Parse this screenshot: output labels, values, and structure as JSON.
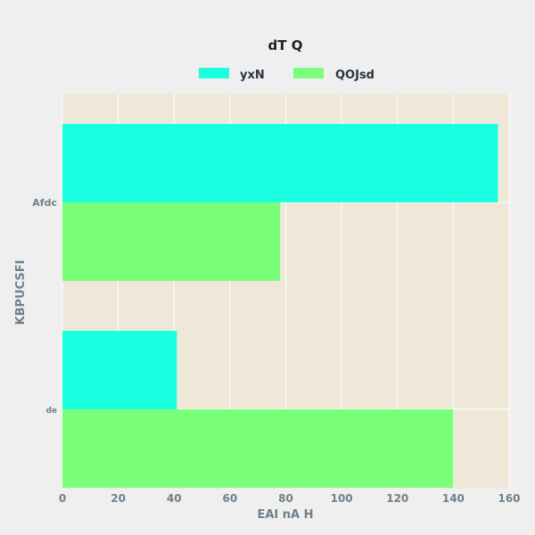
{
  "chart_data": {
    "type": "bar",
    "orientation": "horizontal",
    "title": "dT  Q",
    "xlabel": "EAI nA H",
    "ylabel": "KBPUCSFI",
    "categories": [
      "Afdc",
      "de"
    ],
    "series": [
      {
        "name": "yxN",
        "values": [
          156,
          41
        ]
      },
      {
        "name": "QOJsd",
        "values": [
          78,
          140
        ]
      }
    ],
    "xlim": [
      0,
      160
    ],
    "xticks": [
      "0",
      "20",
      "40",
      "60",
      "80",
      "100",
      "120",
      "140",
      "160"
    ],
    "grid": true,
    "legend_position": "top",
    "colors": {
      "series": [
        "#19ffe0",
        "#7aff7a"
      ],
      "plot_background": "#efe8d8",
      "page_background": "#efefef",
      "grid": "#ffffff"
    }
  }
}
